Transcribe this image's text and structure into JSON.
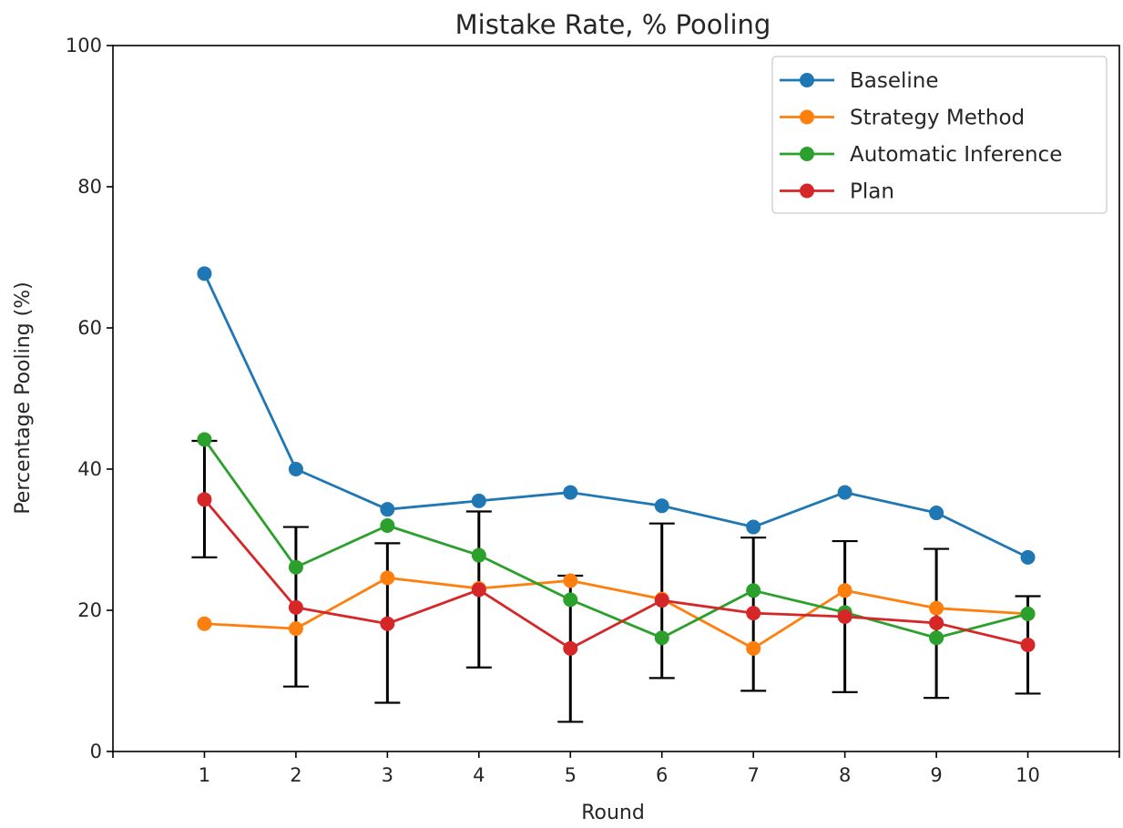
{
  "chart_data": {
    "type": "line",
    "title": "Mistake Rate, % Pooling",
    "xlabel": "Round",
    "ylabel": "Percentage Pooling (%)",
    "x": [
      1,
      2,
      3,
      4,
      5,
      6,
      7,
      8,
      9,
      10
    ],
    "xlim": [
      0,
      11
    ],
    "ylim": [
      0,
      100
    ],
    "yticks": [
      0,
      20,
      40,
      60,
      80,
      100
    ],
    "grid": false,
    "legend_position": "top-right",
    "series": [
      {
        "name": "Baseline",
        "color": "#1f77b4",
        "values": [
          67.7,
          40.0,
          34.3,
          35.5,
          36.7,
          34.8,
          31.8,
          36.7,
          33.8,
          27.5
        ]
      },
      {
        "name": "Strategy Method",
        "color": "#ff7f0e",
        "values": [
          18.1,
          17.4,
          24.6,
          23.1,
          24.2,
          21.6,
          14.6,
          22.8,
          20.3,
          19.5
        ]
      },
      {
        "name": "Automatic Inference",
        "color": "#2ca02c",
        "values": [
          44.2,
          26.1,
          32.0,
          27.8,
          21.5,
          16.1,
          22.8,
          19.7,
          16.1,
          19.5
        ]
      },
      {
        "name": "Plan",
        "color": "#d62728",
        "values": [
          35.7,
          20.4,
          18.1,
          22.9,
          14.6,
          21.4,
          19.6,
          19.1,
          18.2,
          15.1
        ],
        "error_low": [
          27.5,
          9.2,
          6.9,
          11.9,
          4.2,
          10.4,
          8.6,
          8.4,
          7.6,
          8.2
        ],
        "error_high": [
          44.0,
          31.8,
          29.5,
          34.0,
          24.9,
          32.3,
          30.3,
          29.8,
          28.7,
          22.0
        ]
      }
    ]
  }
}
